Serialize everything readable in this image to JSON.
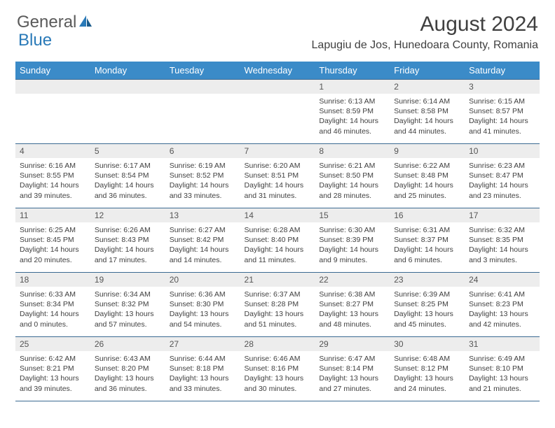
{
  "brand": {
    "name_part1": "General",
    "name_part2": "Blue"
  },
  "title": "August 2024",
  "location": "Lapugiu de Jos, Hunedoara County, Romania",
  "day_headers": [
    "Sunday",
    "Monday",
    "Tuesday",
    "Wednesday",
    "Thursday",
    "Friday",
    "Saturday"
  ],
  "colors": {
    "header_bg": "#3b8bc8",
    "header_text": "#ffffff",
    "daynum_bg": "#ededed",
    "border": "#3b6a92",
    "body_text": "#404040",
    "page_bg": "#ffffff",
    "logo_blue": "#2a7ab8",
    "logo_gray": "#5a5a5a"
  },
  "typography": {
    "title_fontsize": 30,
    "location_fontsize": 16,
    "header_fontsize": 13,
    "daynum_fontsize": 12,
    "details_fontsize": 10.5
  },
  "layout": {
    "first_day_column": 4,
    "days_in_month": 31,
    "columns": 7
  },
  "days": [
    {
      "n": "1",
      "sunrise": "6:13 AM",
      "sunset": "8:59 PM",
      "daylight": "14 hours and 46 minutes."
    },
    {
      "n": "2",
      "sunrise": "6:14 AM",
      "sunset": "8:58 PM",
      "daylight": "14 hours and 44 minutes."
    },
    {
      "n": "3",
      "sunrise": "6:15 AM",
      "sunset": "8:57 PM",
      "daylight": "14 hours and 41 minutes."
    },
    {
      "n": "4",
      "sunrise": "6:16 AM",
      "sunset": "8:55 PM",
      "daylight": "14 hours and 39 minutes."
    },
    {
      "n": "5",
      "sunrise": "6:17 AM",
      "sunset": "8:54 PM",
      "daylight": "14 hours and 36 minutes."
    },
    {
      "n": "6",
      "sunrise": "6:19 AM",
      "sunset": "8:52 PM",
      "daylight": "14 hours and 33 minutes."
    },
    {
      "n": "7",
      "sunrise": "6:20 AM",
      "sunset": "8:51 PM",
      "daylight": "14 hours and 31 minutes."
    },
    {
      "n": "8",
      "sunrise": "6:21 AM",
      "sunset": "8:50 PM",
      "daylight": "14 hours and 28 minutes."
    },
    {
      "n": "9",
      "sunrise": "6:22 AM",
      "sunset": "8:48 PM",
      "daylight": "14 hours and 25 minutes."
    },
    {
      "n": "10",
      "sunrise": "6:23 AM",
      "sunset": "8:47 PM",
      "daylight": "14 hours and 23 minutes."
    },
    {
      "n": "11",
      "sunrise": "6:25 AM",
      "sunset": "8:45 PM",
      "daylight": "14 hours and 20 minutes."
    },
    {
      "n": "12",
      "sunrise": "6:26 AM",
      "sunset": "8:43 PM",
      "daylight": "14 hours and 17 minutes."
    },
    {
      "n": "13",
      "sunrise": "6:27 AM",
      "sunset": "8:42 PM",
      "daylight": "14 hours and 14 minutes."
    },
    {
      "n": "14",
      "sunrise": "6:28 AM",
      "sunset": "8:40 PM",
      "daylight": "14 hours and 11 minutes."
    },
    {
      "n": "15",
      "sunrise": "6:30 AM",
      "sunset": "8:39 PM",
      "daylight": "14 hours and 9 minutes."
    },
    {
      "n": "16",
      "sunrise": "6:31 AM",
      "sunset": "8:37 PM",
      "daylight": "14 hours and 6 minutes."
    },
    {
      "n": "17",
      "sunrise": "6:32 AM",
      "sunset": "8:35 PM",
      "daylight": "14 hours and 3 minutes."
    },
    {
      "n": "18",
      "sunrise": "6:33 AM",
      "sunset": "8:34 PM",
      "daylight": "14 hours and 0 minutes."
    },
    {
      "n": "19",
      "sunrise": "6:34 AM",
      "sunset": "8:32 PM",
      "daylight": "13 hours and 57 minutes."
    },
    {
      "n": "20",
      "sunrise": "6:36 AM",
      "sunset": "8:30 PM",
      "daylight": "13 hours and 54 minutes."
    },
    {
      "n": "21",
      "sunrise": "6:37 AM",
      "sunset": "8:28 PM",
      "daylight": "13 hours and 51 minutes."
    },
    {
      "n": "22",
      "sunrise": "6:38 AM",
      "sunset": "8:27 PM",
      "daylight": "13 hours and 48 minutes."
    },
    {
      "n": "23",
      "sunrise": "6:39 AM",
      "sunset": "8:25 PM",
      "daylight": "13 hours and 45 minutes."
    },
    {
      "n": "24",
      "sunrise": "6:41 AM",
      "sunset": "8:23 PM",
      "daylight": "13 hours and 42 minutes."
    },
    {
      "n": "25",
      "sunrise": "6:42 AM",
      "sunset": "8:21 PM",
      "daylight": "13 hours and 39 minutes."
    },
    {
      "n": "26",
      "sunrise": "6:43 AM",
      "sunset": "8:20 PM",
      "daylight": "13 hours and 36 minutes."
    },
    {
      "n": "27",
      "sunrise": "6:44 AM",
      "sunset": "8:18 PM",
      "daylight": "13 hours and 33 minutes."
    },
    {
      "n": "28",
      "sunrise": "6:46 AM",
      "sunset": "8:16 PM",
      "daylight": "13 hours and 30 minutes."
    },
    {
      "n": "29",
      "sunrise": "6:47 AM",
      "sunset": "8:14 PM",
      "daylight": "13 hours and 27 minutes."
    },
    {
      "n": "30",
      "sunrise": "6:48 AM",
      "sunset": "8:12 PM",
      "daylight": "13 hours and 24 minutes."
    },
    {
      "n": "31",
      "sunrise": "6:49 AM",
      "sunset": "8:10 PM",
      "daylight": "13 hours and 21 minutes."
    }
  ],
  "labels": {
    "sunrise_prefix": "Sunrise: ",
    "sunset_prefix": "Sunset: ",
    "daylight_prefix": "Daylight: "
  }
}
